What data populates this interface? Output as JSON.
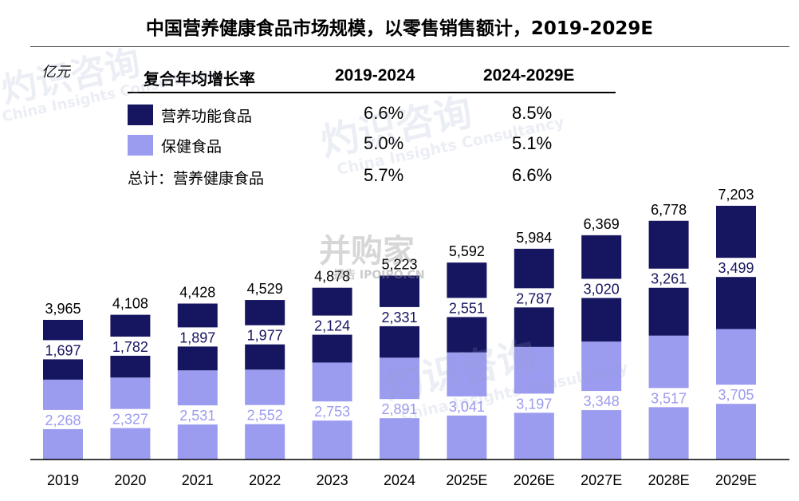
{
  "title": "中国营养健康食品市场规模，以零售销售额计，2019-2029E",
  "unit": "亿元",
  "cagr_table": {
    "header_label": "复合年均增长率",
    "periods": [
      "2019-2024",
      "2024-2029E"
    ],
    "rows": [
      {
        "name": "营养功能食品",
        "color": "#161560",
        "values": [
          "6.6%",
          "8.5%"
        ]
      },
      {
        "name": "保健食品",
        "color": "#9b9bef",
        "values": [
          "5.0%",
          "5.1%"
        ]
      },
      {
        "name": "总计：营养健康食品",
        "values": [
          "5.7%",
          "6.6%"
        ]
      }
    ]
  },
  "watermarks": {
    "brand_cn": "灼识咨询",
    "brand_en": "China Insights Consultancy",
    "site": "并购家",
    "site_sub": "报告 IPOIPO.CN"
  },
  "chart_data": {
    "type": "bar",
    "stacked": true,
    "categories": [
      "2019",
      "2020",
      "2021",
      "2022",
      "2023",
      "2024",
      "2025E",
      "2026E",
      "2027E",
      "2028E",
      "2029E"
    ],
    "series": [
      {
        "name": "保健食品",
        "color": "#9b9bef",
        "values": [
          2268,
          2327,
          2531,
          2552,
          2753,
          2891,
          3041,
          3197,
          3348,
          3517,
          3705
        ]
      },
      {
        "name": "营养功能食品",
        "color": "#161560",
        "values": [
          1697,
          1782,
          1897,
          1977,
          2124,
          2331,
          2551,
          2787,
          3020,
          3261,
          3499
        ]
      }
    ],
    "totals": [
      3965,
      4108,
      4428,
      4529,
      4878,
      5223,
      5592,
      5984,
      6369,
      6778,
      7203
    ],
    "ylim": [
      0,
      8000
    ],
    "grid": false,
    "axis_color": "#000000"
  }
}
